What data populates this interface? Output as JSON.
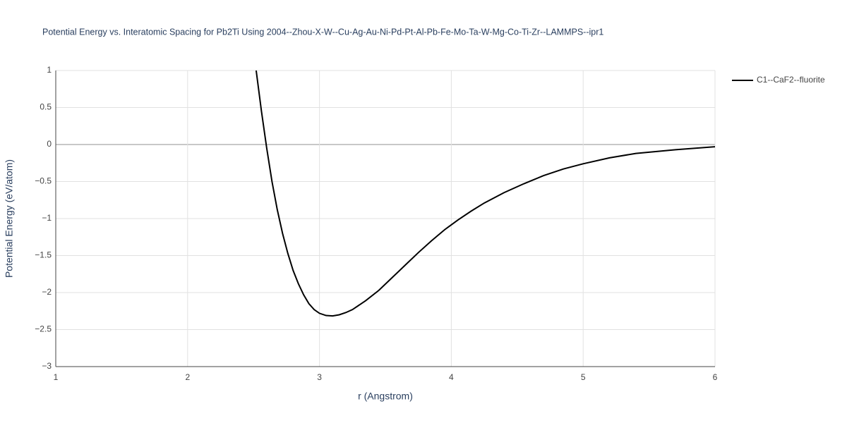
{
  "chart_data": {
    "type": "line",
    "title": "Potential Energy vs. Interatomic Spacing for Pb2Ti Using 2004--Zhou-X-W--Cu-Ag-Au-Ni-Pd-Pt-Al-Pb-Fe-Mo-Ta-W-Mg-Co-Ti-Zr--LAMMPS--ipr1",
    "x_label": "r (Angstrom)",
    "y_label": "Potential Energy (eV/atom)",
    "x": [
      2.52,
      2.56,
      2.6,
      2.64,
      2.68,
      2.72,
      2.76,
      2.8,
      2.84,
      2.88,
      2.92,
      2.96,
      3.0,
      3.05,
      3.1,
      3.15,
      3.2,
      3.25,
      3.35,
      3.45,
      3.55,
      3.65,
      3.75,
      3.85,
      3.95,
      4.05,
      4.15,
      4.25,
      4.4,
      4.55,
      4.7,
      4.85,
      5.0,
      5.2,
      5.4,
      5.7,
      6.0
    ],
    "series": [
      {
        "name": "C1--CaF2--fluorite",
        "color": "#000000",
        "values": [
          1.0,
          0.45,
          -0.05,
          -0.5,
          -0.88,
          -1.2,
          -1.47,
          -1.7,
          -1.88,
          -2.03,
          -2.15,
          -2.23,
          -2.28,
          -2.31,
          -2.315,
          -2.3,
          -2.27,
          -2.23,
          -2.11,
          -1.97,
          -1.8,
          -1.63,
          -1.46,
          -1.3,
          -1.15,
          -1.02,
          -0.9,
          -0.79,
          -0.65,
          -0.53,
          -0.42,
          -0.33,
          -0.26,
          -0.18,
          -0.12,
          -0.07,
          -0.03
        ]
      }
    ],
    "xlim": [
      1,
      6
    ],
    "xticks": [
      1,
      2,
      3,
      4,
      5,
      6
    ],
    "ylim": [
      -3,
      1
    ],
    "yticks": [
      {
        "value": -3,
        "label": "−3"
      },
      {
        "value": -2.5,
        "label": "−2.5"
      },
      {
        "value": -2,
        "label": "−2"
      },
      {
        "value": -1.5,
        "label": "−1.5"
      },
      {
        "value": -1,
        "label": "−1"
      },
      {
        "value": -0.5,
        "label": "−0.5"
      },
      0,
      0.5,
      1
    ],
    "grid": true
  }
}
